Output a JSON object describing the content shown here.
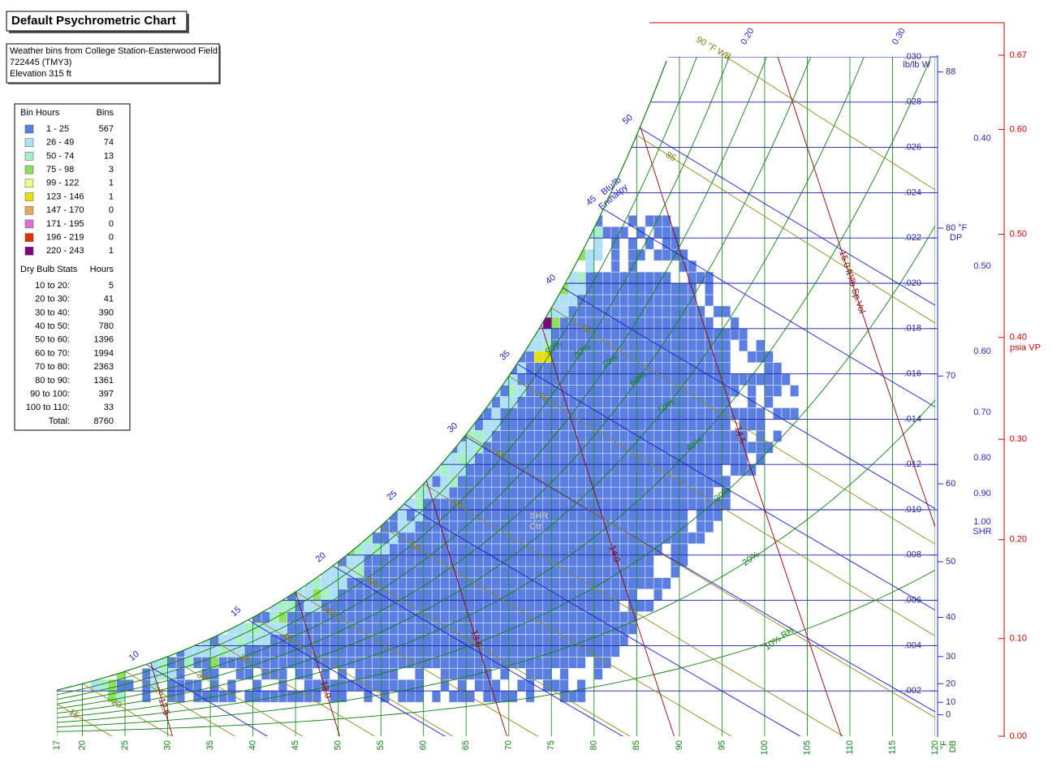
{
  "title": "Default Psychrometric Chart",
  "info": [
    "Weather bins from College Station-Easterwood Field",
    "722445 (TMY3)",
    "Elevation 315 ft"
  ],
  "bin_legend": {
    "header": [
      "Bin Hours",
      "Bins"
    ],
    "rows": [
      {
        "range": "1 - 25",
        "bins": 567,
        "color": "#5b7fe0"
      },
      {
        "range": "26 - 49",
        "bins": 74,
        "color": "#aee0f8"
      },
      {
        "range": "50 - 74",
        "bins": 13,
        "color": "#a6f0c6"
      },
      {
        "range": "75 - 98",
        "bins": 3,
        "color": "#8ee060"
      },
      {
        "range": "99 - 122",
        "bins": 1,
        "color": "#f0f890"
      },
      {
        "range": "123 - 146",
        "bins": 1,
        "color": "#e8e000"
      },
      {
        "range": "147 - 170",
        "bins": 0,
        "color": "#e8a860"
      },
      {
        "range": "171 - 195",
        "bins": 0,
        "color": "#e070d0"
      },
      {
        "range": "196 - 219",
        "bins": 0,
        "color": "#e03000"
      },
      {
        "range": "220 - 243",
        "bins": 1,
        "color": "#800080"
      }
    ]
  },
  "dry_bulb_stats": {
    "header": [
      "Dry Bulb Stats",
      "Hours"
    ],
    "rows": [
      {
        "range": "10 to 20:",
        "hours": 5
      },
      {
        "range": "20 to 30:",
        "hours": 41
      },
      {
        "range": "30 to 40:",
        "hours": 390
      },
      {
        "range": "40 to 50:",
        "hours": 780
      },
      {
        "range": "50 to 60:",
        "hours": 1396
      },
      {
        "range": "60 to 70:",
        "hours": 1994
      },
      {
        "range": "70 to 80:",
        "hours": 2363
      },
      {
        "range": "80 to 90:",
        "hours": 1361
      },
      {
        "range": "90 to 100:",
        "hours": 397
      },
      {
        "range": "100 to 110:",
        "hours": 33
      }
    ],
    "total": {
      "label": "Total:",
      "hours": 8760
    }
  },
  "chart": {
    "dry_bulb": {
      "ticks": [
        17,
        20,
        25,
        30,
        35,
        40,
        45,
        50,
        55,
        60,
        65,
        70,
        75,
        80,
        85,
        90,
        95,
        100,
        105,
        110,
        115,
        120
      ],
      "unit": "°F",
      "name": "DB"
    },
    "humidity_ratio": {
      "ticks": [
        {
          "value": 0.002,
          "label": ".002"
        },
        {
          "value": 0.004,
          "label": ".004"
        },
        {
          "value": 0.006,
          "label": ".006"
        },
        {
          "value": 0.008,
          "label": ".008"
        },
        {
          "value": 0.01,
          "label": ".010"
        },
        {
          "value": 0.012,
          "label": ".012"
        },
        {
          "value": 0.014,
          "label": ".014"
        },
        {
          "value": 0.016,
          "label": ".016"
        },
        {
          "value": 0.018,
          "label": ".018"
        },
        {
          "value": 0.02,
          "label": ".020"
        },
        {
          "value": 0.022,
          "label": ".022"
        },
        {
          "value": 0.024,
          "label": ".024"
        },
        {
          "value": 0.026,
          "label": ".026"
        },
        {
          "value": 0.028,
          "label": ".028"
        },
        {
          "value": 0.03,
          "label": ".030"
        }
      ],
      "unit": "lb/lb W"
    },
    "dew_point": {
      "ticks": [
        0,
        10,
        20,
        30,
        40,
        50,
        60,
        70,
        80,
        88
      ],
      "unit": "°F",
      "name": "DP"
    },
    "vapor_pressure": {
      "ticks": [
        {
          "value": 0,
          "label": "0.00"
        },
        {
          "value": 0.1,
          "label": "0.10"
        },
        {
          "value": 0.2,
          "label": "0.20"
        },
        {
          "value": 0.3,
          "label": "0.30"
        },
        {
          "value": 0.4,
          "label": "0.40"
        },
        {
          "value": 0.5,
          "label": "0.50"
        },
        {
          "value": 0.6,
          "label": "0.60"
        },
        {
          "value": 0.67,
          "label": "0.67"
        }
      ],
      "unit": "psia VP"
    },
    "shr": {
      "ticks": [
        {
          "value": 0.2,
          "label": "0.20"
        },
        {
          "value": 0.3,
          "label": "0.30"
        },
        {
          "value": 0.4,
          "label": "0.40"
        },
        {
          "value": 0.5,
          "label": "0.50"
        },
        {
          "value": 0.6,
          "label": "0.60"
        },
        {
          "value": 0.7,
          "label": "0.70"
        },
        {
          "value": 0.8,
          "label": "0.80"
        },
        {
          "value": 0.9,
          "label": "0.90"
        },
        {
          "value": 1,
          "label": "1.00"
        }
      ],
      "name": "SHR",
      "center": [
        "SHR",
        "Ctr"
      ]
    },
    "enthalpy": {
      "values": [
        10,
        15,
        20,
        25,
        30,
        35,
        40,
        45,
        50
      ],
      "unit": "Btu/lb",
      "name": "Enthalpy"
    },
    "wet_bulb": {
      "values": [
        15,
        20,
        25,
        30,
        35,
        40,
        45,
        50,
        55,
        60,
        65,
        70,
        75,
        85,
        90
      ],
      "unit": "°F WB"
    },
    "relative_humidity": {
      "values": [
        10,
        20,
        30,
        40,
        50,
        60,
        70,
        80,
        90
      ],
      "unit": "%",
      "name": "RH"
    },
    "specific_volume": {
      "values": [
        12.5,
        {
          "value": 13,
          "label": "13.0"
        },
        13.5,
        {
          "value": 14,
          "label": "14.0"
        },
        14.5,
        {
          "value": 15,
          "label": "15.0"
        }
      ],
      "unit": "ft³/lb Sp.Vol"
    }
  }
}
